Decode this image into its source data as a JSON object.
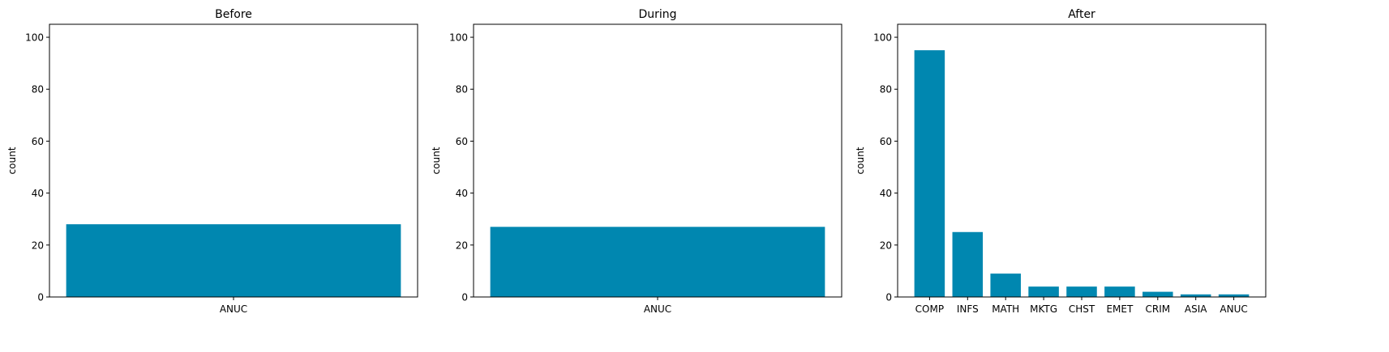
{
  "chart_data": [
    {
      "type": "bar",
      "title": "Before",
      "xlabel": "",
      "ylabel": "count",
      "categories": [
        "ANUC"
      ],
      "values": [
        28
      ],
      "ylim": [
        0,
        105
      ],
      "yticks": [
        0,
        20,
        40,
        60,
        80,
        100
      ],
      "grid": false,
      "bar_color": "#0087b0"
    },
    {
      "type": "bar",
      "title": "During",
      "xlabel": "",
      "ylabel": "count",
      "categories": [
        "ANUC"
      ],
      "values": [
        27
      ],
      "ylim": [
        0,
        105
      ],
      "yticks": [
        0,
        20,
        40,
        60,
        80,
        100
      ],
      "grid": false,
      "bar_color": "#0087b0"
    },
    {
      "type": "bar",
      "title": "After",
      "xlabel": "",
      "ylabel": "count",
      "categories": [
        "COMP",
        "INFS",
        "MATH",
        "MKTG",
        "CHST",
        "EMET",
        "CRIM",
        "ASIA",
        "ANUC"
      ],
      "values": [
        95,
        25,
        9,
        4,
        4,
        4,
        2,
        1,
        1
      ],
      "ylim": [
        0,
        105
      ],
      "yticks": [
        0,
        20,
        40,
        60,
        80,
        100
      ],
      "grid": false,
      "bar_color": "#0087b0"
    }
  ]
}
